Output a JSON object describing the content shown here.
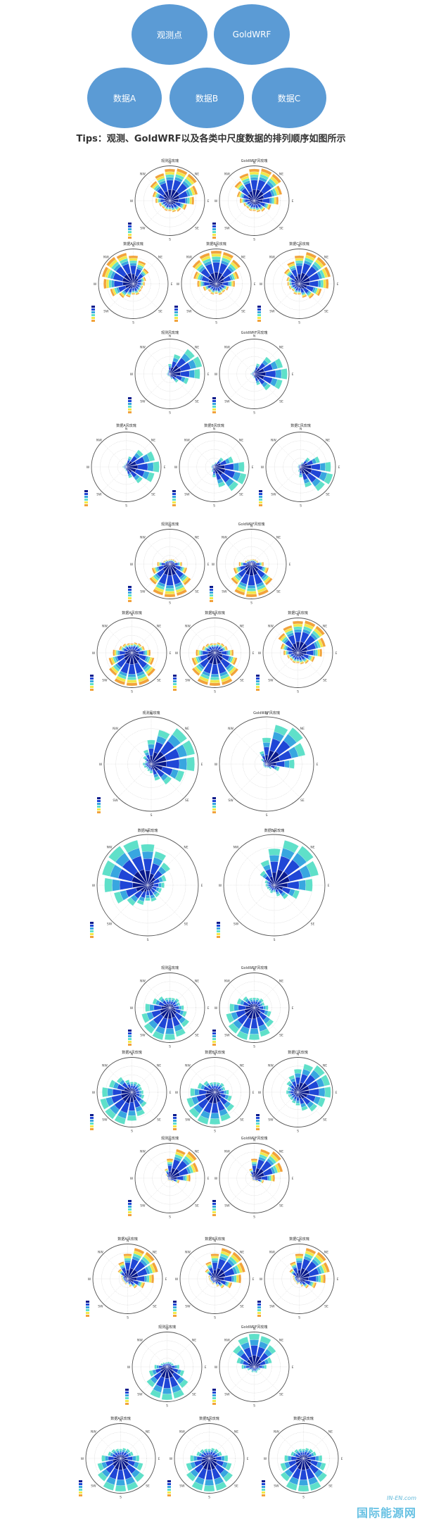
{
  "diagram": {
    "nodes": [
      {
        "id": "obs",
        "label": "观测点"
      },
      {
        "id": "gold",
        "label": "GoldWRF"
      },
      {
        "id": "a",
        "label": "数据A"
      },
      {
        "id": "b",
        "label": "数据B"
      },
      {
        "id": "c",
        "label": "数据C"
      }
    ]
  },
  "tips": "Tips：观测、GoldWRF以及各类中尺度数据的排列顺序如图所示",
  "colors": {
    "node_fill": "#5b9bd5",
    "bins": [
      "#0a1a8c",
      "#1f46d6",
      "#38a6e0",
      "#5fe0c9",
      "#f2e84a",
      "#f2a23a",
      "#c0261b"
    ]
  },
  "directions": [
    "N",
    "NE",
    "E",
    "SE",
    "S",
    "SW",
    "W",
    "NW"
  ],
  "watermark": {
    "top": "IN-EN.com",
    "main": "国际能源网"
  },
  "chart_data": [
    {
      "type": "windrose",
      "title": "观测风玫瑰",
      "dominant": "NNE",
      "spread": "wide",
      "long_bins": true
    },
    {
      "type": "windrose",
      "title": "GoldWRF风玫瑰",
      "dominant": "NNE",
      "spread": "wide",
      "long_bins": true
    },
    {
      "type": "windrose",
      "title": "数据A风玫瑰",
      "dominant": "NW",
      "spread": "wide",
      "long_bins": true
    },
    {
      "type": "windrose",
      "title": "数据B风玫瑰",
      "dominant": "N",
      "spread": "wide",
      "long_bins": true
    },
    {
      "type": "windrose",
      "title": "数据C风玫瑰",
      "dominant": "NE",
      "spread": "wide",
      "long_bins": true
    },
    {
      "type": "windrose",
      "title": "观测风玫瑰",
      "dominant": "ENE",
      "spread": "narrow",
      "long_bins": false
    },
    {
      "type": "windrose",
      "title": "GoldWRF风玫瑰",
      "dominant": "E",
      "spread": "narrow",
      "long_bins": false
    },
    {
      "type": "windrose",
      "title": "数据A风玫瑰",
      "dominant": "E",
      "spread": "narrow",
      "long_bins": false
    },
    {
      "type": "windrose",
      "title": "数据B风玫瑰",
      "dominant": "ESE",
      "spread": "narrow",
      "long_bins": false
    },
    {
      "type": "windrose",
      "title": "数据C风玫瑰",
      "dominant": "ESE",
      "spread": "narrow",
      "long_bins": false
    },
    {
      "type": "windrose",
      "title": "观测风玫瑰",
      "dominant": "S",
      "spread": "medium",
      "long_bins": true
    },
    {
      "type": "windrose",
      "title": "GoldWRF风玫瑰",
      "dominant": "S",
      "spread": "medium",
      "long_bins": true
    },
    {
      "type": "windrose",
      "title": "数据A风玫瑰",
      "dominant": "S",
      "spread": "wide",
      "long_bins": true
    },
    {
      "type": "windrose",
      "title": "数据B风玫瑰",
      "dominant": "S",
      "spread": "wide",
      "long_bins": true
    },
    {
      "type": "windrose",
      "title": "数据C风玫瑰",
      "dominant": "NNE",
      "spread": "wide",
      "long_bins": true
    },
    {
      "type": "windrose",
      "title": "观测风玫瑰",
      "dominant": "ENE",
      "spread": "medium",
      "long_bins": false
    },
    {
      "type": "windrose",
      "title": "GoldWRF风玫瑰",
      "dominant": "NE",
      "spread": "narrow",
      "long_bins": false
    },
    {
      "type": "windrose",
      "title": "数据A风玫瑰",
      "dominant": "NW",
      "spread": "wide",
      "long_bins": false
    },
    {
      "type": "windrose",
      "title": "数据B风玫瑰",
      "dominant": "NE",
      "spread": "medium",
      "long_bins": false
    },
    {
      "type": "windrose",
      "title": "观测风玫瑰",
      "dominant": "SSW",
      "spread": "wide",
      "long_bins": false
    },
    {
      "type": "windrose",
      "title": "GoldWRF风玫瑰",
      "dominant": "SSW",
      "spread": "wide",
      "long_bins": false
    },
    {
      "type": "windrose",
      "title": "数据A风玫瑰",
      "dominant": "SW",
      "spread": "wide",
      "long_bins": false
    },
    {
      "type": "windrose",
      "title": "数据B风玫瑰",
      "dominant": "SSW",
      "spread": "wide",
      "long_bins": false
    },
    {
      "type": "windrose",
      "title": "数据C风玫瑰",
      "dominant": "ENE",
      "spread": "wide",
      "long_bins": false
    },
    {
      "type": "windrose",
      "title": "观测风玫瑰",
      "dominant": "NE",
      "spread": "narrow",
      "long_bins": true
    },
    {
      "type": "windrose",
      "title": "GoldWRF风玫瑰",
      "dominant": "NE",
      "spread": "narrow",
      "long_bins": true
    },
    {
      "type": "windrose",
      "title": "数据A风玫瑰",
      "dominant": "NE",
      "spread": "medium",
      "long_bins": true
    },
    {
      "type": "windrose",
      "title": "数据B风玫瑰",
      "dominant": "NE",
      "spread": "medium",
      "long_bins": true
    },
    {
      "type": "windrose",
      "title": "数据C风玫瑰",
      "dominant": "NE",
      "spread": "medium",
      "long_bins": true
    },
    {
      "type": "windrose",
      "title": "观测风玫瑰",
      "dominant": "S",
      "spread": "medium",
      "long_bins": false
    },
    {
      "type": "windrose",
      "title": "GoldWRF风玫瑰",
      "dominant": "N",
      "spread": "medium",
      "long_bins": false
    },
    {
      "type": "windrose",
      "title": "数据A风玫瑰",
      "dominant": "S",
      "spread": "wide",
      "long_bins": false
    },
    {
      "type": "windrose",
      "title": "数据B风玫瑰",
      "dominant": "S",
      "spread": "wide",
      "long_bins": false
    },
    {
      "type": "windrose",
      "title": "数据C风玫瑰",
      "dominant": "S",
      "spread": "wide",
      "long_bins": false
    }
  ]
}
